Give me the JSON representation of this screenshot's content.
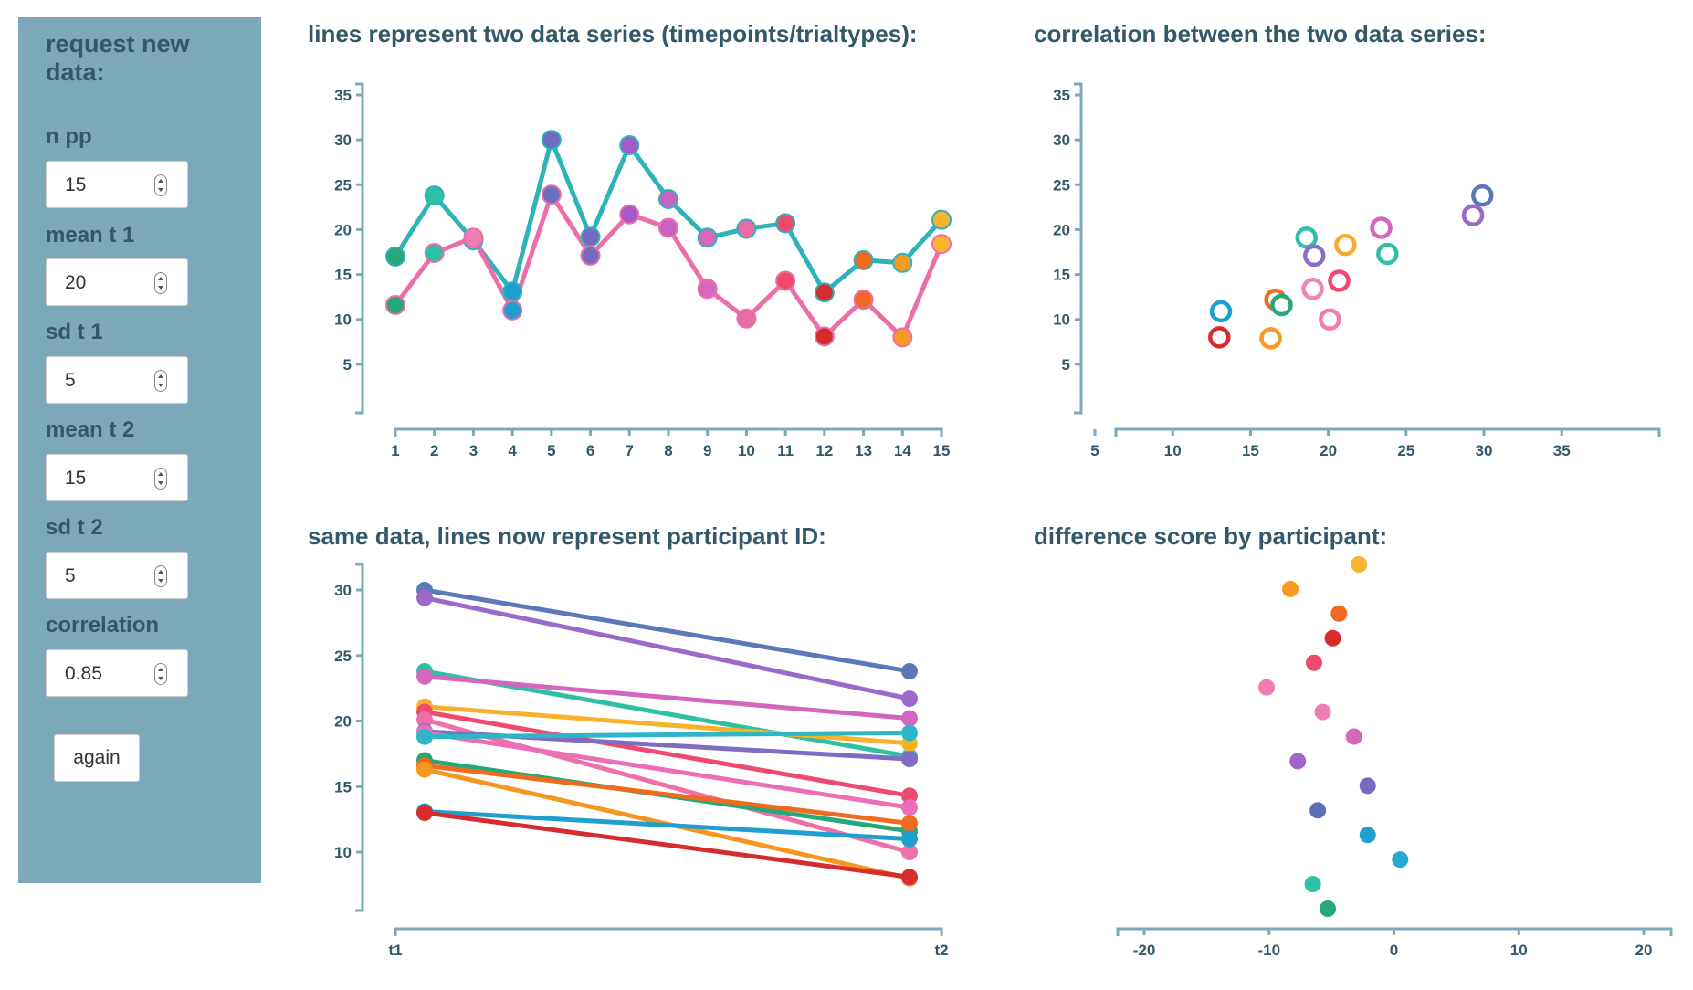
{
  "controls": {
    "title": "request new data:",
    "fields": [
      {
        "label": "n pp",
        "value": "15"
      },
      {
        "label": "mean t 1",
        "value": "20"
      },
      {
        "label": "sd t 1",
        "value": "5"
      },
      {
        "label": "mean t 2",
        "value": "15"
      },
      {
        "label": "sd t 2",
        "value": "5"
      },
      {
        "label": "correlation",
        "value": "0.85"
      }
    ],
    "button_label": "again"
  },
  "colors": {
    "panel": "#7ca9b8",
    "axis": "#7ca9b8",
    "text": "#32586a",
    "line_t1": "#2db3b9",
    "line_t2": "#ec6ea9"
  },
  "chart_data": [
    {
      "type": "line",
      "title": "lines represent two data series (timepoints/trialtypes):",
      "x": [
        1,
        2,
        3,
        4,
        5,
        6,
        7,
        8,
        9,
        10,
        11,
        12,
        13,
        14,
        15
      ],
      "ylim": [
        0,
        35
      ],
      "yticks": [
        5,
        10,
        15,
        20,
        25,
        30,
        35
      ],
      "series": [
        {
          "values": [
            17,
            23.8,
            18.8,
            13.1,
            30,
            19.2,
            29.4,
            23.4,
            19.1,
            20.1,
            20.7,
            13,
            16.6,
            16.3,
            21.1
          ]
        },
        {
          "values": [
            11.6,
            17.4,
            19.1,
            11,
            23.9,
            17.1,
            21.7,
            20.2,
            13.4,
            10.1,
            14.3,
            8.1,
            12.2,
            8,
            18.4
          ]
        }
      ],
      "point_colors": [
        "#27a77a",
        "#2cc0a6",
        "#ee7db6",
        "#1f9fd0",
        "#6a70bf",
        "#7768c1",
        "#a65ac9",
        "#c663c2",
        "#d568ba",
        "#e76ba7",
        "#ef4a6e",
        "#d72c2d",
        "#ef6a1e",
        "#f59a22",
        "#f8b42c"
      ]
    },
    {
      "type": "scatter",
      "title": "correlation between the two data series:",
      "xlim": [
        1.3,
        37
      ],
      "ylim": [
        0,
        35
      ],
      "xticks": [
        5,
        10,
        15,
        20,
        25,
        30,
        35
      ],
      "yticks": [
        5,
        10,
        15,
        20,
        25,
        30,
        35
      ],
      "points": [
        {
          "x": 29.9,
          "y": 23.8,
          "color": "#5b78b8"
        },
        {
          "x": 29.3,
          "y": 21.6,
          "color": "#9b6ac9"
        },
        {
          "x": 23.4,
          "y": 20.2,
          "color": "#d367c0"
        },
        {
          "x": 18.6,
          "y": 19.1,
          "color": "#2fc0b0"
        },
        {
          "x": 21.1,
          "y": 18.3,
          "color": "#f7ab2c"
        },
        {
          "x": 23.8,
          "y": 17.3,
          "color": "#2fbfa3"
        },
        {
          "x": 19.1,
          "y": 17.1,
          "color": "#8d6cc4"
        },
        {
          "x": 20.7,
          "y": 14.3,
          "color": "#ee4a6f"
        },
        {
          "x": 19.0,
          "y": 13.4,
          "color": "#ef85bb"
        },
        {
          "x": 16.6,
          "y": 12.2,
          "color": "#ef6b1e"
        },
        {
          "x": 17.0,
          "y": 11.6,
          "color": "#27a77a"
        },
        {
          "x": 13.1,
          "y": 10.9,
          "color": "#1f9fd0"
        },
        {
          "x": 20.1,
          "y": 10.0,
          "color": "#f27cb1"
        },
        {
          "x": 13.0,
          "y": 8.0,
          "color": "#d72c2d"
        },
        {
          "x": 16.3,
          "y": 7.9,
          "color": "#f59a22"
        }
      ]
    },
    {
      "type": "line",
      "title": "same data, lines now represent participant ID:",
      "categories": [
        "t1",
        "t2"
      ],
      "ylim": [
        4.5,
        32.5
      ],
      "yticks": [
        10,
        15,
        20,
        25,
        30
      ],
      "series": [
        {
          "values": [
            30,
            23.8
          ],
          "color": "#5b78b8"
        },
        {
          "values": [
            29.4,
            21.7
          ],
          "color": "#9b6ac9"
        },
        {
          "values": [
            23.8,
            17.3
          ],
          "color": "#2fbfa3"
        },
        {
          "values": [
            23.4,
            20.2
          ],
          "color": "#d367c0"
        },
        {
          "values": [
            21.1,
            18.3
          ],
          "color": "#f7b22c"
        },
        {
          "values": [
            20.7,
            14.3
          ],
          "color": "#ee4a6f"
        },
        {
          "values": [
            20.1,
            10.0
          ],
          "color": "#ef6fa8"
        },
        {
          "values": [
            19.2,
            17.1
          ],
          "color": "#7f6cc3"
        },
        {
          "values": [
            19.1,
            13.4
          ],
          "color": "#ea6fb6"
        },
        {
          "values": [
            18.8,
            19.1
          ],
          "color": "#2fb6c6"
        },
        {
          "values": [
            17.0,
            11.6
          ],
          "color": "#27a77a"
        },
        {
          "values": [
            16.6,
            12.2
          ],
          "color": "#ef6b1e"
        },
        {
          "values": [
            16.3,
            8.0
          ],
          "color": "#f5961f"
        },
        {
          "values": [
            13.1,
            11.0
          ],
          "color": "#1f9fd0"
        },
        {
          "values": [
            13.0,
            8.1
          ],
          "color": "#d72c2d"
        }
      ]
    },
    {
      "type": "scatter",
      "title": "difference score by participant:",
      "xlim": [
        -22.5,
        22.5
      ],
      "xticks": [
        -20,
        -10,
        0,
        10,
        20
      ],
      "points": [
        {
          "x": -2.8,
          "color": "#f8b42c"
        },
        {
          "x": -8.3,
          "color": "#f59a22"
        },
        {
          "x": -4.4,
          "color": "#ef6a1e"
        },
        {
          "x": -4.9,
          "color": "#d72c2d"
        },
        {
          "x": -6.4,
          "color": "#ef4a6e"
        },
        {
          "x": -10.2,
          "color": "#ef7db1"
        },
        {
          "x": -5.7,
          "color": "#ef7db6"
        },
        {
          "x": -3.2,
          "color": "#d568ba"
        },
        {
          "x": -7.7,
          "color": "#a065c6"
        },
        {
          "x": -2.1,
          "color": "#7768c1"
        },
        {
          "x": -6.1,
          "color": "#5b6fb8"
        },
        {
          "x": -2.1,
          "color": "#1f9fd0"
        },
        {
          "x": 0.5,
          "color": "#2aa9d0"
        },
        {
          "x": -6.5,
          "color": "#2cc0a6"
        },
        {
          "x": -5.3,
          "color": "#27a77a"
        }
      ]
    }
  ]
}
